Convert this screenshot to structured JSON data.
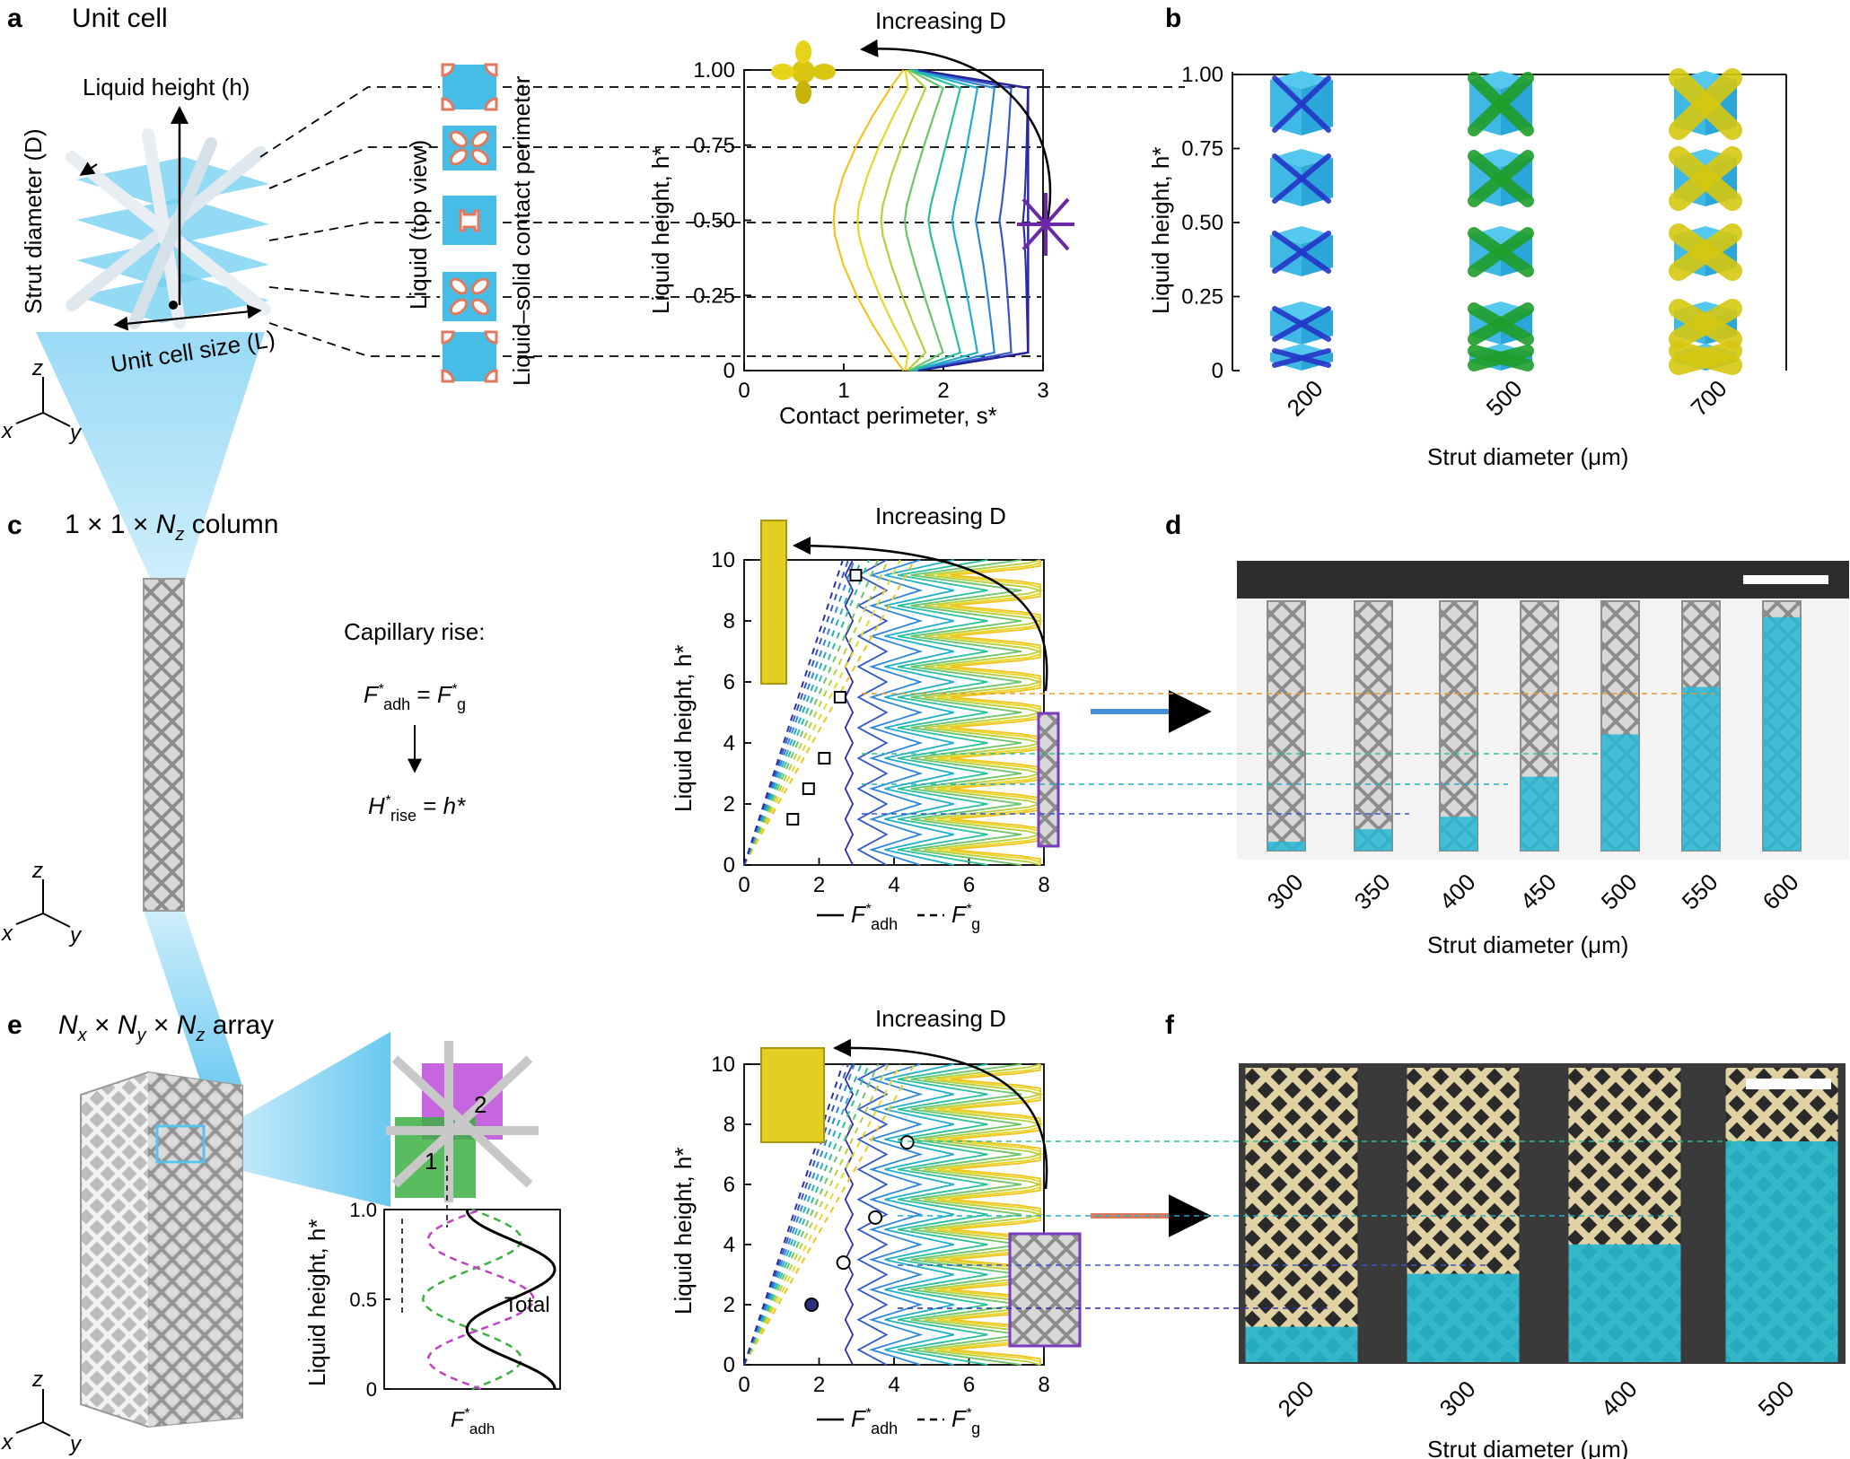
{
  "panel_letters": {
    "a": "a",
    "b": "b",
    "c": "c",
    "d": "d",
    "e": "e",
    "f": "f"
  },
  "panel_a": {
    "title": "Unit cell",
    "liquid_height_label": "Liquid height (h)",
    "strut_diameter_label": "Strut diameter (D)",
    "unit_cell_size_label": "Unit cell size (L)",
    "liquid_top_view_label": "Liquid (top view)",
    "contact_perimeter_label": "Liquid–solid contact perimeter",
    "axis_z": "z",
    "axis_x": "x",
    "axis_y": "y",
    "colors": {
      "title": "#3aa845",
      "liquid": "#45bde6",
      "perimeter": "#e07a5f"
    }
  },
  "chart_a": {
    "annotation": "Increasing D",
    "xlabel": "Contact perimeter, s*",
    "ylabel": "Liquid height, h*",
    "xticks": [
      "0",
      "1",
      "2",
      "3"
    ],
    "yticks": [
      "0",
      "0.25",
      "0.50",
      "0.75",
      "1.00"
    ],
    "xlim": [
      0,
      3
    ],
    "ylim": [
      0,
      1
    ]
  },
  "panel_b": {
    "ylabel": "Liquid height, h*",
    "yticks": [
      "0",
      "0.25",
      "0.50",
      "0.75",
      "1.00"
    ],
    "xticks": [
      "200",
      "500",
      "700"
    ],
    "xlabel": "Strut diameter (μm)"
  },
  "panel_c": {
    "title_parts": [
      "1 × 1 × ",
      "N",
      "z",
      " column"
    ],
    "capillary_rise": "Capillary rise:",
    "eq1_left": "F",
    "eq1_left_sub": "adh",
    "eq1_right": "F",
    "eq1_right_sub": "g",
    "eq2_left": "H",
    "eq2_left_sub": "rise",
    "eq2_right": "h*",
    "axis_z": "z",
    "axis_x": "x",
    "axis_y": "y"
  },
  "chart_c": {
    "annotation": "Increasing D",
    "ylabel": "Liquid height, h*",
    "xticks": [
      "0",
      "2",
      "4",
      "6",
      "8"
    ],
    "yticks": [
      "0",
      "2",
      "4",
      "6",
      "8",
      "10"
    ],
    "xlim": [
      0,
      8
    ],
    "ylim": [
      0,
      10
    ],
    "legend_solid": "F",
    "legend_solid_sub": "adh",
    "legend_dashed": "F",
    "legend_dashed_sub": "g",
    "rise_heights": [
      1.5,
      2.5,
      3.5,
      5.5,
      9.5
    ]
  },
  "panel_d": {
    "xticks": [
      "300",
      "350",
      "400",
      "450",
      "500",
      "550",
      "600"
    ],
    "xlabel": "Strut diameter (μm)",
    "fill_levels": [
      0.0,
      0.05,
      0.1,
      0.26,
      0.43,
      0.62,
      0.9
    ]
  },
  "panel_e": {
    "title_parts": [
      "N",
      "x",
      " × ",
      "N",
      "y",
      " × ",
      "N",
      "z",
      " array"
    ],
    "inset_ylabel": "Liquid height, h*",
    "inset_yticks": [
      "0",
      "0.5",
      "1.0"
    ],
    "inset_total": "Total",
    "inset_xlabel": "F",
    "inset_xlabel_sub": "adh",
    "cell_labels": [
      "1",
      "2"
    ],
    "axis_z": "z",
    "axis_x": "x",
    "axis_y": "y"
  },
  "chart_e": {
    "annotation": "Increasing D",
    "ylabel": "Liquid height, h*",
    "xticks": [
      "0",
      "2",
      "4",
      "6",
      "8"
    ],
    "yticks": [
      "0",
      "2",
      "4",
      "6",
      "8",
      "10"
    ],
    "xlim": [
      0,
      8
    ],
    "ylim": [
      0,
      10
    ],
    "legend_solid": "F",
    "legend_solid_sub": "adh",
    "legend_dashed": "F",
    "legend_dashed_sub": "g",
    "rise_heights": [
      2.0,
      3.4,
      4.9,
      7.4
    ]
  },
  "panel_f": {
    "xticks": [
      "200",
      "300",
      "400",
      "500"
    ],
    "xlabel": "Strut diameter (μm)",
    "fill_levels": [
      0.12,
      0.3,
      0.4,
      0.75
    ]
  },
  "chart_data": [
    {
      "type": "line",
      "title": "",
      "xlabel": "Contact perimeter, s*",
      "ylabel": "Liquid height, h*",
      "xlim": [
        0,
        3
      ],
      "ylim": [
        0,
        1
      ],
      "note": "family of contact-perimeter curves for increasing strut diameter D; all curves meet at s* ≈ 0.9, h* = 0.5",
      "series": [
        {
          "values": [
            [
              1.75,
              0
            ],
            [
              2.85,
              0.06
            ],
            [
              2.85,
              0.5
            ],
            [
              2.85,
              0.94
            ],
            [
              1.75,
              1.0
            ]
          ]
        },
        {
          "values": [
            [
              1.75,
              0
            ],
            [
              2.7,
              0.2
            ],
            [
              1.2,
              0.45
            ],
            [
              0.9,
              0.5
            ],
            [
              1.2,
              0.55
            ],
            [
              2.7,
              0.8
            ],
            [
              1.75,
              1.0
            ]
          ]
        },
        {
          "values": [
            [
              1.75,
              0
            ],
            [
              2.4,
              0.25
            ],
            [
              0.9,
              0.5
            ],
            [
              2.4,
              0.75
            ],
            [
              1.75,
              1.0
            ]
          ]
        },
        {
          "values": [
            [
              1.55,
              0
            ],
            [
              1.95,
              0.18
            ],
            [
              0.9,
              0.5
            ],
            [
              1.95,
              0.82
            ],
            [
              1.55,
              1.0
            ]
          ]
        }
      ]
    },
    {
      "type": "line",
      "title": "",
      "ylabel": "Liquid height, h*",
      "xlim": [
        0,
        8
      ],
      "ylim": [
        0,
        10
      ],
      "series": [
        {
          "name": "F*adh",
          "values": []
        },
        {
          "name": "F*g",
          "values": []
        }
      ],
      "rise_points": [
        [
          1.4,
          1.5
        ],
        [
          1.8,
          2.5
        ],
        [
          2.1,
          3.5
        ],
        [
          2.5,
          5.5
        ],
        [
          3.0,
          9.5
        ]
      ]
    },
    {
      "type": "line",
      "title": "",
      "ylabel": "Liquid height, h*",
      "xlim": [
        0,
        8
      ],
      "ylim": [
        0,
        10
      ],
      "series": [
        {
          "name": "F*adh",
          "values": []
        },
        {
          "name": "F*g",
          "values": []
        }
      ],
      "rise_points": [
        [
          1.9,
          2.0
        ],
        [
          2.9,
          3.4
        ],
        [
          3.6,
          4.9
        ],
        [
          4.4,
          7.4
        ]
      ]
    },
    {
      "type": "line",
      "title": "",
      "ylabel": "Liquid height, h*",
      "xlim": [
        0,
        1
      ],
      "ylim": [
        0,
        1.0
      ],
      "note": "inset: adhesion force of cell 1 (green), cell 2 (magenta) and Total (black) vs liquid height"
    }
  ]
}
